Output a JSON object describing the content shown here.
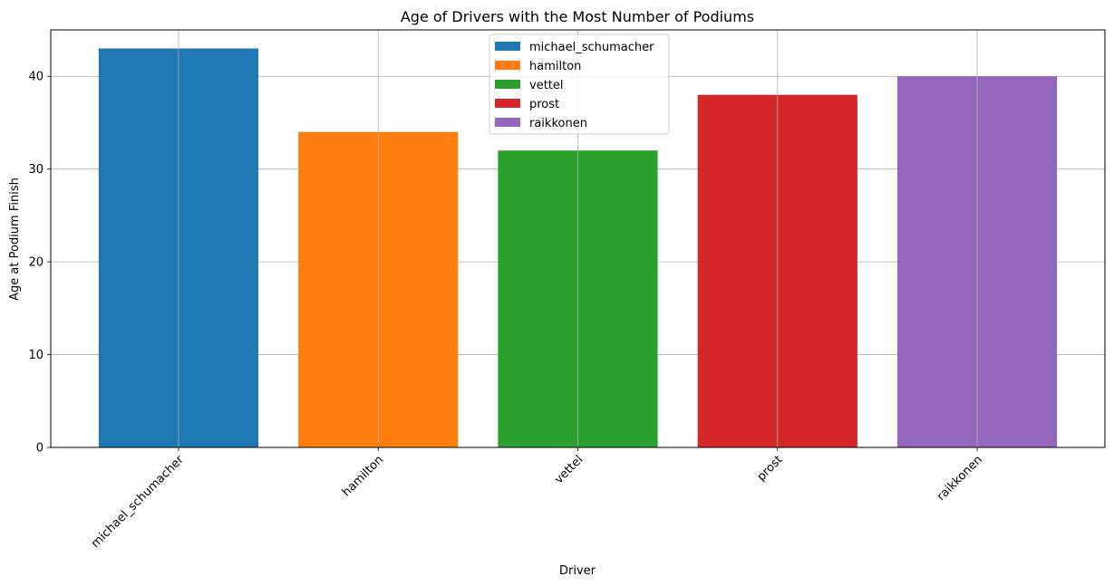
{
  "chart_data": {
    "type": "bar",
    "title": "Age of Drivers with the Most Number of Podiums",
    "xlabel": "Driver",
    "ylabel": "Age at Podium Finish",
    "categories": [
      "michael_schumacher",
      "hamilton",
      "vettel",
      "prost",
      "raikkonen"
    ],
    "values": [
      43,
      34,
      32,
      38,
      40
    ],
    "colors": [
      "#1f77b4",
      "#ff7f0e",
      "#2ca02c",
      "#d62728",
      "#9467bd"
    ],
    "ylim": [
      0,
      45
    ],
    "yticks": [
      0,
      10,
      20,
      30,
      40
    ],
    "grid": true,
    "legend": {
      "placement": "upper-center",
      "entries": [
        "michael_schumacher",
        "hamilton",
        "vettel",
        "prost",
        "raikkonen"
      ]
    },
    "xtick_rotation_deg": 45
  }
}
